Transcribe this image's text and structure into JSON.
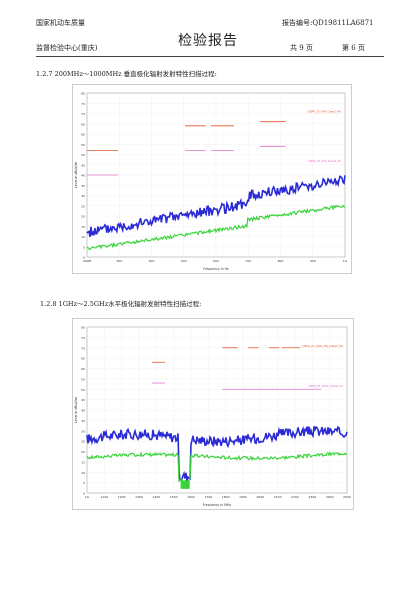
{
  "header": {
    "org_left": "国家机动车质量",
    "center_left": "监督检验中心(重庆)",
    "title": "检验报告",
    "report_no": "报告编号:QD19811LA6871",
    "pages_total": "共 9 页",
    "page_current": "第 6 页"
  },
  "sections": [
    {
      "label": "1.2.7 200MHz～1000MHz 垂直极化辐射发射特性扫描过程:",
      "chart": {
        "type": "line",
        "x_ticks": [
          "200M",
          "300",
          "400",
          "500",
          "600",
          "700",
          "800",
          "900",
          "1G"
        ],
        "y_ticks": [
          "80",
          "75",
          "70",
          "65",
          "60",
          "55",
          "50",
          "45",
          "40",
          "35",
          "30",
          "25",
          "20",
          "15",
          "10",
          "5",
          "0"
        ],
        "ylabel": "Level in dBµV/m",
        "xlabel": "Frequency in Hz",
        "legend": [
          "CISPR_25_VVP_Class3_FW",
          "CISPR_25_VVP_Class3_AV"
        ],
        "colors": {
          "peak": "#2b2bd6",
          "avg": "#3ad43a",
          "limit_pk": "#e0552a",
          "limit_av": "#e070c8"
        }
      }
    },
    {
      "label": "1.2.8 1GHz～2.5GHz水平极化辐射发射特性扫描过程:",
      "chart": {
        "type": "line",
        "x_ticks": [
          "1G",
          "1100",
          "1200",
          "1300",
          "1400",
          "1500",
          "1600",
          "1700",
          "1800",
          "1900",
          "2000",
          "2100",
          "2200",
          "2300",
          "2400",
          "2500"
        ],
        "y_ticks": [
          "80",
          "75",
          "70",
          "65",
          "60",
          "55",
          "50",
          "45",
          "40",
          "35",
          "30",
          "25",
          "20",
          "15",
          "10",
          "5",
          "0"
        ],
        "ylabel": "Level in dBµV/m",
        "xlabel": "Frequency in MHz",
        "legend": [
          "CISPR_25_1GHz_FW_Class3_FW",
          "CISPR_25_1GHz_Class3_AV"
        ],
        "colors": {
          "peak": "#2b2bd6",
          "avg": "#3ad43a",
          "limit_pk": "#e0552a",
          "limit_av": "#e070c8"
        }
      }
    }
  ]
}
